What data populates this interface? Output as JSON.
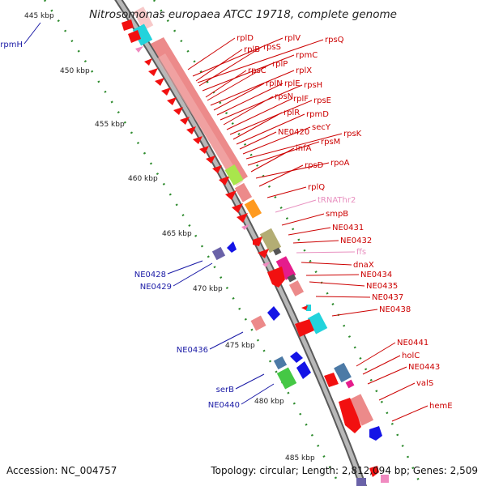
{
  "title": "Nitrosomonas europaea ATCC 19718, complete genome",
  "footer": {
    "accession": "Accession: NC_004757",
    "summary": "Topology: circular; Length: 2,812,094 bp; Genes: 2,509"
  },
  "colors": {
    "red_label": "#cc0000",
    "blue_label": "#1a1aa6",
    "rna_label": "#e88fbf",
    "gene_red": "#f21010",
    "gene_salmon": "#ec8a8a",
    "gene_blue": "#1414e6",
    "gene_cyan": "#22d3dc",
    "gene_olive": "#b3ad74",
    "gene_magenta": "#e51c8c",
    "gene_green": "#45c845",
    "gene_lime": "#a9e64c",
    "gene_orange": "#ff9a1f",
    "gene_steel": "#4c7aa6",
    "gene_purple": "#6a62a8",
    "gene_pink": "#f08ac0",
    "backbone": "#9a9a9a",
    "kbp_dots": "#2e8b2e"
  },
  "kbp_ticks": [
    "445 kbp",
    "450 kbp",
    "455 kbp",
    "460 kbp",
    "465 kbp",
    "470 kbp",
    "475 kbp",
    "480 kbp",
    "485 kbp"
  ],
  "genes_right": [
    {
      "label": "rplD",
      "kind": "cds"
    },
    {
      "label": "rplV",
      "kind": "cds"
    },
    {
      "label": "rpsQ",
      "kind": "cds"
    },
    {
      "label": "rplB",
      "kind": "cds"
    },
    {
      "label": "rpsS",
      "kind": "cds"
    },
    {
      "label": "rpmC",
      "kind": "cds"
    },
    {
      "label": "rpsC",
      "kind": "cds"
    },
    {
      "label": "rplP",
      "kind": "cds"
    },
    {
      "label": "rplX",
      "kind": "cds"
    },
    {
      "label": "rplN",
      "kind": "cds"
    },
    {
      "label": "rplE",
      "kind": "cds"
    },
    {
      "label": "rpsH",
      "kind": "cds"
    },
    {
      "label": "rpsN",
      "kind": "cds"
    },
    {
      "label": "rplF",
      "kind": "cds"
    },
    {
      "label": "rpsE",
      "kind": "cds"
    },
    {
      "label": "rplR",
      "kind": "cds"
    },
    {
      "label": "rpmD",
      "kind": "cds"
    },
    {
      "label": "NE0420",
      "kind": "cds"
    },
    {
      "label": "secY",
      "kind": "cds"
    },
    {
      "label": "rpsK",
      "kind": "cds"
    },
    {
      "label": "rpsM",
      "kind": "cds"
    },
    {
      "label": "infA",
      "kind": "cds"
    },
    {
      "label": "rpoA",
      "kind": "cds"
    },
    {
      "label": "rpsD",
      "kind": "cds"
    },
    {
      "label": "rplQ",
      "kind": "cds"
    },
    {
      "label": "tRNAThr2",
      "kind": "rna"
    },
    {
      "label": "smpB",
      "kind": "cds"
    },
    {
      "label": "NE0431",
      "kind": "cds"
    },
    {
      "label": "NE0432",
      "kind": "cds"
    },
    {
      "label": "ffs",
      "kind": "rna"
    },
    {
      "label": "dnaX",
      "kind": "cds"
    },
    {
      "label": "NE0434",
      "kind": "cds"
    },
    {
      "label": "NE0435",
      "kind": "cds"
    },
    {
      "label": "NE0437",
      "kind": "cds"
    },
    {
      "label": "NE0438",
      "kind": "cds"
    },
    {
      "label": "NE0441",
      "kind": "cds"
    },
    {
      "label": "holC",
      "kind": "cds"
    },
    {
      "label": "NE0443",
      "kind": "cds"
    },
    {
      "label": "valS",
      "kind": "cds"
    },
    {
      "label": "hemE",
      "kind": "cds"
    }
  ],
  "genes_left": [
    {
      "label": "rpmH"
    },
    {
      "label": "NE0428"
    },
    {
      "label": "NE0429"
    },
    {
      "label": "NE0436"
    },
    {
      "label": "serB"
    },
    {
      "label": "NE0440"
    }
  ]
}
